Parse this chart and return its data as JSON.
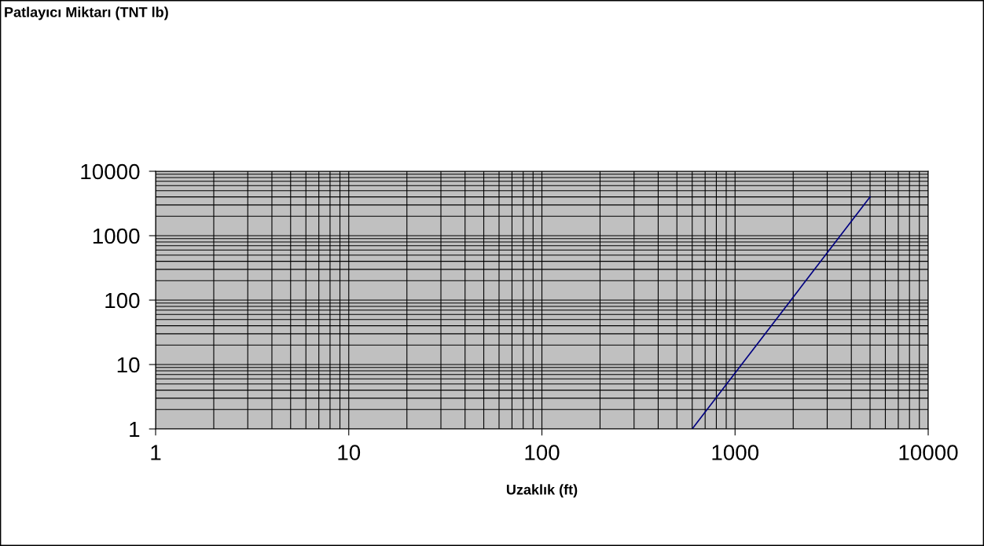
{
  "chart_data": {
    "type": "line",
    "annotations": [
      "Patlayıcı Miktarı (TNT lb)"
    ],
    "xlabel": "Uzaklık (ft)",
    "series": [
      {
        "color": "#000080",
        "x": [
          600,
          5000
        ],
        "values": [
          1,
          4000
        ]
      }
    ],
    "log": "xy",
    "xlim": [
      1,
      10000
    ],
    "ylim": [
      1,
      10000
    ],
    "xticks": [
      1,
      10,
      100,
      1000,
      10000
    ],
    "yticks": [
      1,
      10,
      100,
      1000,
      10000
    ],
    "grid": true,
    "legend": false,
    "marker": "none",
    "line_style": "solid"
  }
}
